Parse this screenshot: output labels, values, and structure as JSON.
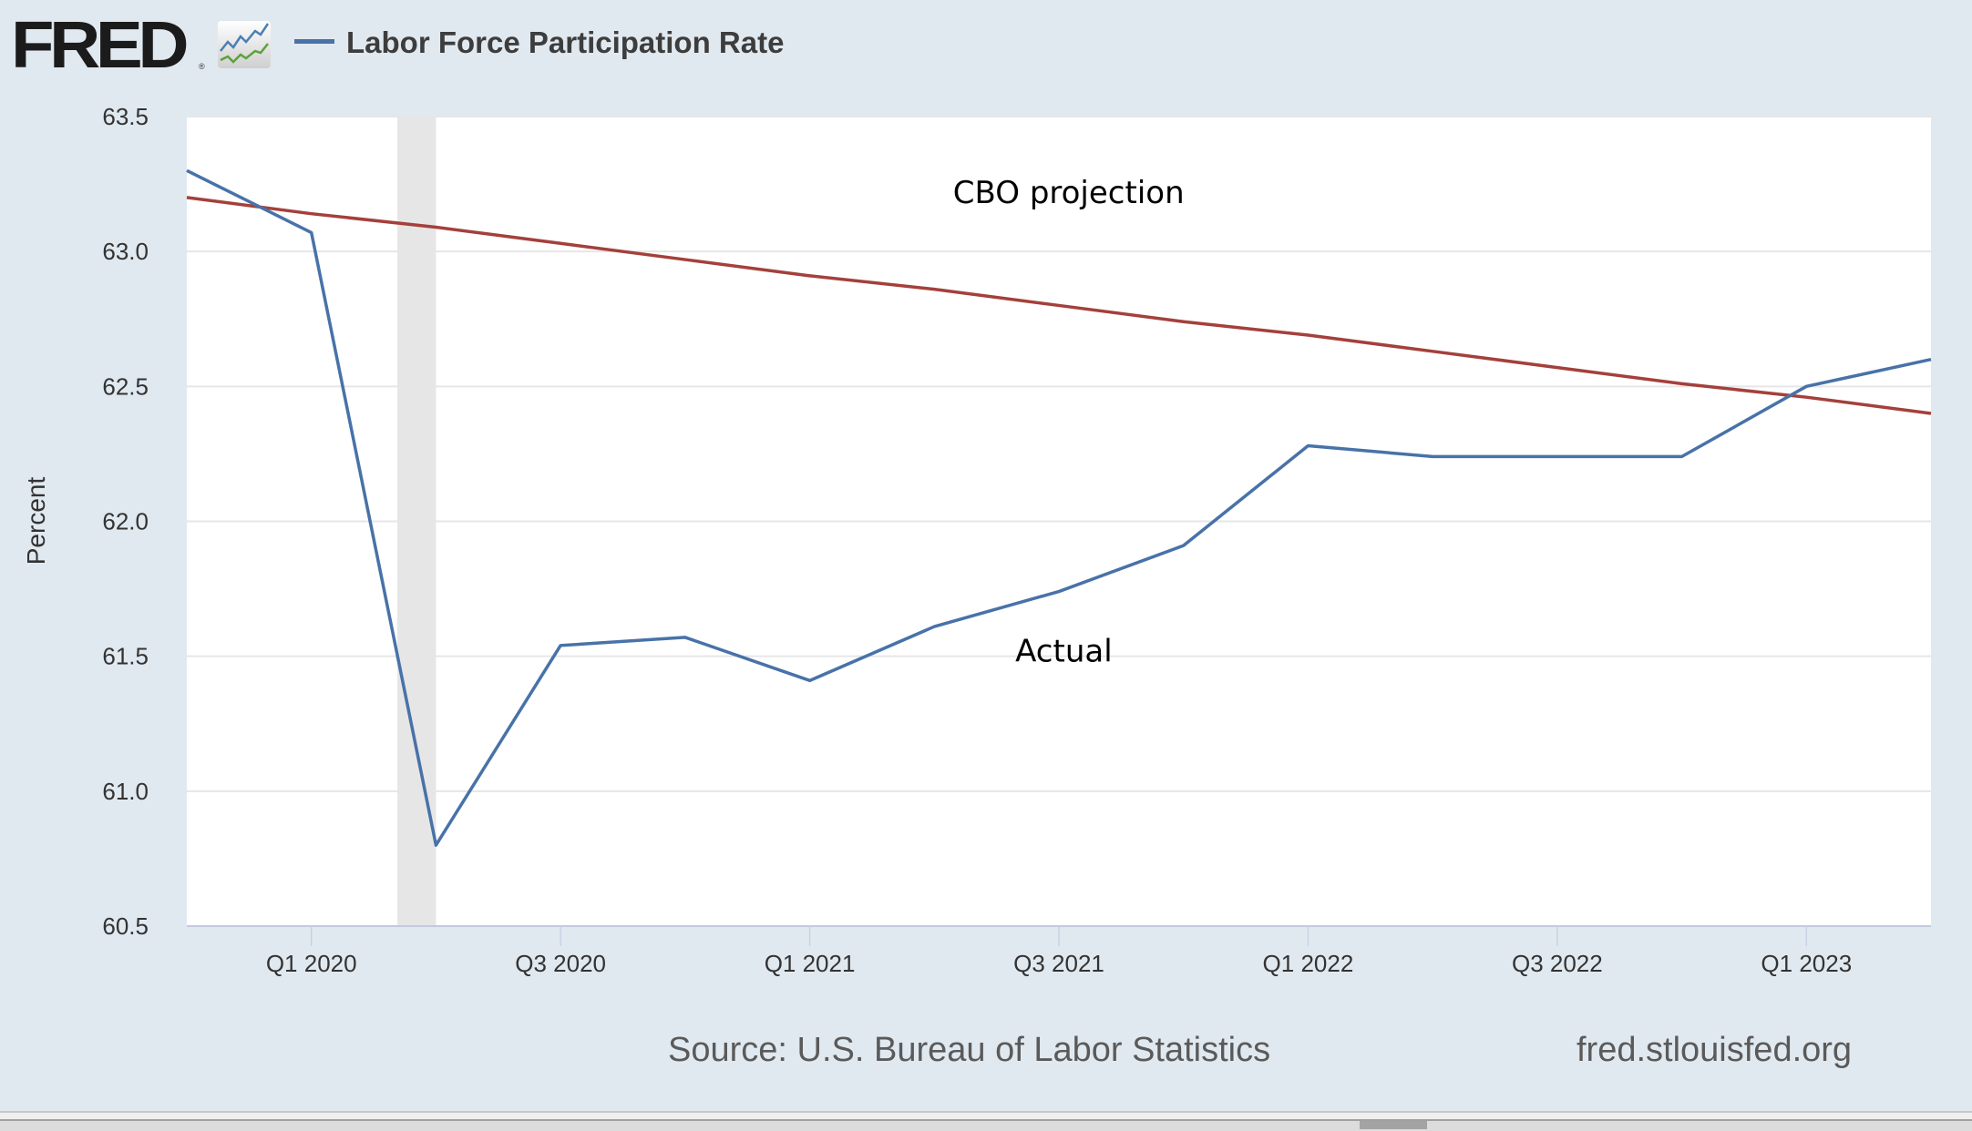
{
  "header": {
    "logo_text": "FRED",
    "logo_mark": "®",
    "logo_icon": "line-chart-icon",
    "legend_series": "Labor Force Participation Rate",
    "legend_color": "#4872a8"
  },
  "footer": {
    "source": "Source: U.S. Bureau of Labor Statistics",
    "url": "fred.stlouisfed.org"
  },
  "chart_data": {
    "type": "line",
    "title": "Labor Force Participation Rate",
    "xlabel": "",
    "ylabel": "Percent",
    "ylim": [
      60.5,
      63.5
    ],
    "yticks": [
      "60.5",
      "61.0",
      "61.5",
      "62.0",
      "62.5",
      "63.0",
      "63.5"
    ],
    "grid": true,
    "legend": "top-left",
    "x": [
      "Q4 2019",
      "Q1 2020",
      "Q2 2020",
      "Q3 2020",
      "Q4 2020",
      "Q1 2021",
      "Q2 2021",
      "Q3 2021",
      "Q4 2021",
      "Q1 2022",
      "Q2 2022",
      "Q3 2022",
      "Q4 2022",
      "Q1 2023",
      "Q2 2023"
    ],
    "xticks": [
      {
        "label": "Q1 2020",
        "index": 1
      },
      {
        "label": "Q3 2020",
        "index": 3
      },
      {
        "label": "Q1 2021",
        "index": 5
      },
      {
        "label": "Q3 2021",
        "index": 7
      },
      {
        "label": "Q1 2022",
        "index": 9
      },
      {
        "label": "Q3 2022",
        "index": 11
      },
      {
        "label": "Q1 2023",
        "index": 13
      }
    ],
    "series": [
      {
        "name": "Actual",
        "color": "#4872a8",
        "values": [
          63.3,
          63.07,
          60.8,
          61.54,
          61.57,
          61.41,
          61.61,
          61.74,
          61.91,
          62.28,
          62.24,
          62.24,
          62.24,
          62.5,
          62.6
        ]
      },
      {
        "name": "CBO projection",
        "color": "#a4403b",
        "values": [
          63.2,
          63.14,
          63.09,
          63.03,
          62.97,
          62.91,
          62.86,
          62.8,
          62.74,
          62.69,
          62.63,
          62.57,
          62.51,
          62.46,
          62.4
        ]
      }
    ],
    "recession_shading": {
      "from_index": 1.69,
      "to_index": 2.0,
      "color": "#e6e6e6"
    },
    "annotations": [
      {
        "text": "CBO projection",
        "x_index": 6.15,
        "y": 63.18
      },
      {
        "text": "Actual",
        "x_index": 6.65,
        "y": 61.48
      }
    ]
  }
}
